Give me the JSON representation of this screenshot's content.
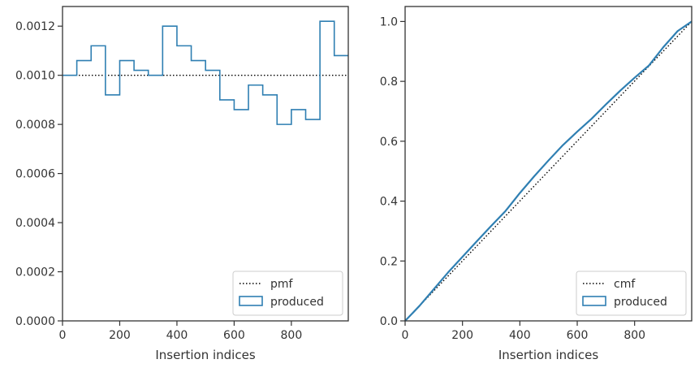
{
  "colors": {
    "produced": "#2f7fb2",
    "reference": "#000000",
    "legend_border": "#cccccc",
    "axes": "#333333"
  },
  "chart_data": [
    {
      "type": "histogram",
      "xlabel": "Insertion indices",
      "ylabel": "",
      "xlim": [
        0,
        999
      ],
      "ylim": [
        0,
        0.00128
      ],
      "xticks": [
        0,
        200,
        400,
        600,
        800
      ],
      "xtick_labels": [
        "0",
        "200",
        "400",
        "600",
        "800"
      ],
      "yticks": [
        0,
        0.0002,
        0.0004,
        0.0006,
        0.0008,
        0.001,
        0.0012
      ],
      "ytick_labels": [
        "0.0000",
        "0.0002",
        "0.0004",
        "0.0006",
        "0.0008",
        "0.0010",
        "0.0012"
      ],
      "bin_edges": [
        0,
        50,
        100,
        150,
        200,
        250,
        300,
        350,
        400,
        450,
        500,
        550,
        600,
        650,
        700,
        750,
        800,
        850,
        900,
        950,
        1000
      ],
      "series": [
        {
          "name": "pmf",
          "style": "dotted",
          "x": [
            0,
            999
          ],
          "y": [
            0.001,
            0.001
          ]
        },
        {
          "name": "produced",
          "style": "step",
          "values": [
            0.001,
            0.00106,
            0.00112,
            0.00092,
            0.00106,
            0.00102,
            0.001,
            0.0012,
            0.00112,
            0.00106,
            0.00102,
            0.0009,
            0.00086,
            0.00096,
            0.00092,
            0.0008,
            0.00086,
            0.00082,
            0.00122,
            0.00108
          ]
        }
      ],
      "legend": {
        "placement": "lower right",
        "entries": [
          "pmf",
          "produced"
        ]
      }
    },
    {
      "type": "line",
      "xlabel": "Insertion indices",
      "ylabel": "",
      "xlim": [
        0,
        999
      ],
      "ylim": [
        0,
        1.05
      ],
      "xticks": [
        0,
        200,
        400,
        600,
        800
      ],
      "xtick_labels": [
        "0",
        "200",
        "400",
        "600",
        "800"
      ],
      "yticks": [
        0,
        0.2,
        0.4,
        0.6,
        0.8,
        1.0
      ],
      "ytick_labels": [
        "0.0",
        "0.2",
        "0.4",
        "0.6",
        "0.8",
        "1.0"
      ],
      "series": [
        {
          "name": "cmf",
          "style": "dotted",
          "x": [
            0,
            999
          ],
          "y": [
            0,
            1.0
          ]
        },
        {
          "name": "produced",
          "style": "line",
          "x": [
            0,
            50,
            100,
            150,
            200,
            250,
            300,
            350,
            400,
            450,
            500,
            550,
            600,
            650,
            700,
            750,
            800,
            850,
            900,
            950,
            999
          ],
          "y": [
            0,
            0.05,
            0.106,
            0.162,
            0.214,
            0.266,
            0.317,
            0.367,
            0.427,
            0.483,
            0.536,
            0.587,
            0.632,
            0.675,
            0.723,
            0.769,
            0.812,
            0.853,
            0.914,
            0.968,
            1.0
          ]
        }
      ],
      "legend": {
        "placement": "lower right",
        "entries": [
          "cmf",
          "produced"
        ]
      }
    }
  ]
}
